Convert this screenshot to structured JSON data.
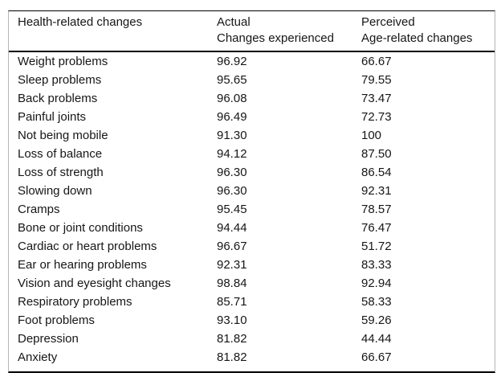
{
  "table": {
    "header": {
      "col1": "Health-related changes",
      "col2_line1": "Actual",
      "col2_line2": "Changes experienced",
      "col3_line1": "Perceived",
      "col3_line2": "Age-related changes"
    },
    "rows": [
      {
        "label": "Weight problems",
        "actual": "96.92",
        "perceived": "66.67"
      },
      {
        "label": "Sleep problems",
        "actual": "95.65",
        "perceived": "79.55"
      },
      {
        "label": "Back problems",
        "actual": "96.08",
        "perceived": "73.47"
      },
      {
        "label": "Painful joints",
        "actual": "96.49",
        "perceived": "72.73"
      },
      {
        "label": "Not being mobile",
        "actual": "91.30",
        "perceived": "100"
      },
      {
        "label": "Loss of balance",
        "actual": "94.12",
        "perceived": "87.50"
      },
      {
        "label": "Loss of strength",
        "actual": "96.30",
        "perceived": "86.54"
      },
      {
        "label": "Slowing down",
        "actual": "96.30",
        "perceived": "92.31"
      },
      {
        "label": "Cramps",
        "actual": "95.45",
        "perceived": "78.57"
      },
      {
        "label": "Bone or joint conditions",
        "actual": "94.44",
        "perceived": "76.47"
      },
      {
        "label": "Cardiac or heart problems",
        "actual": "96.67",
        "perceived": "51.72"
      },
      {
        "label": "Ear or hearing problems",
        "actual": "92.31",
        "perceived": "83.33"
      },
      {
        "label": "Vision and eyesight changes",
        "actual": "98.84",
        "perceived": "92.94"
      },
      {
        "label": "Respiratory problems",
        "actual": "85.71",
        "perceived": "58.33"
      },
      {
        "label": "Foot problems",
        "actual": "93.10",
        "perceived": "59.26"
      },
      {
        "label": "Depression",
        "actual": "81.82",
        "perceived": "44.44"
      },
      {
        "label": "Anxiety",
        "actual": "81.82",
        "perceived": "66.67"
      }
    ]
  },
  "chart_data": {
    "type": "table",
    "columns": [
      "Health-related changes",
      "Actual Changes experienced",
      "Perceived Age-related changes"
    ],
    "rows": [
      [
        "Weight problems",
        96.92,
        66.67
      ],
      [
        "Sleep problems",
        95.65,
        79.55
      ],
      [
        "Back problems",
        96.08,
        73.47
      ],
      [
        "Painful joints",
        96.49,
        72.73
      ],
      [
        "Not being mobile",
        91.3,
        100
      ],
      [
        "Loss of balance",
        94.12,
        87.5
      ],
      [
        "Loss of strength",
        96.3,
        86.54
      ],
      [
        "Slowing down",
        96.3,
        92.31
      ],
      [
        "Cramps",
        95.45,
        78.57
      ],
      [
        "Bone or joint conditions",
        94.44,
        76.47
      ],
      [
        "Cardiac or heart problems",
        96.67,
        51.72
      ],
      [
        "Ear or hearing problems",
        92.31,
        83.33
      ],
      [
        "Vision and eyesight changes",
        98.84,
        92.94
      ],
      [
        "Respiratory problems",
        85.71,
        58.33
      ],
      [
        "Foot problems",
        93.1,
        59.26
      ],
      [
        "Depression",
        81.82,
        44.44
      ],
      [
        "Anxiety",
        81.82,
        66.67
      ]
    ]
  },
  "colors": {
    "text": "#161616",
    "rule": "#000000",
    "side_border": "#b5b5b5",
    "background": "#ffffff"
  }
}
